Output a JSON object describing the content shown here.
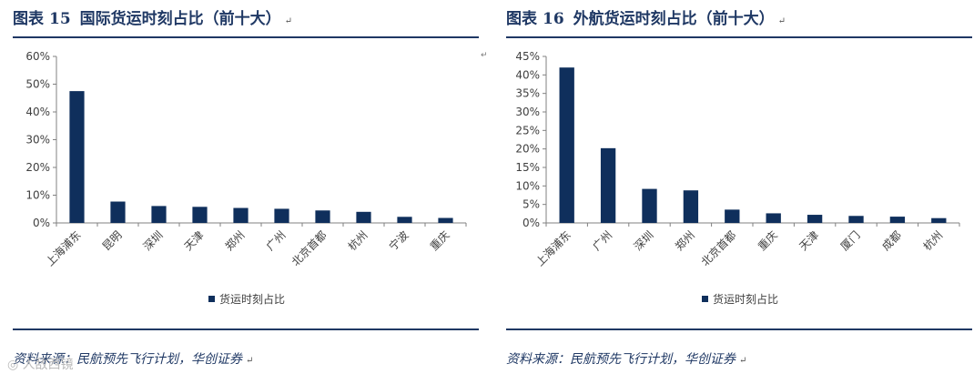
{
  "figures": [
    {
      "title_prefix": "图表",
      "number": "15",
      "title": "国际货运时刻占比（前十大）",
      "source": "资料来源：民航预先飞行计划，华创证券"
    },
    {
      "title_prefix": "图表",
      "number": "16",
      "title": "外航货运时刻占比（前十大）",
      "source": "资料来源：民航预先飞行计划，华创证券"
    }
  ],
  "paragraph_mark": "↵",
  "watermark": "人敌西镜",
  "colors": {
    "bar": "#0f2f5c",
    "axis": "#808080",
    "text": "#1f3864"
  },
  "chart_data": [
    {
      "type": "bar",
      "categories": [
        "上海浦东",
        "昆明",
        "深圳",
        "天津",
        "郑州",
        "广州",
        "北京首都",
        "杭州",
        "宁波",
        "重庆"
      ],
      "series": [
        {
          "name": "货运时刻占比",
          "values": [
            47.5,
            7.7,
            6.1,
            5.8,
            5.4,
            5.1,
            4.5,
            4.0,
            2.2,
            1.8
          ]
        }
      ],
      "ylim": [
        0,
        60
      ],
      "yticks": [
        0,
        10,
        20,
        30,
        40,
        50,
        60
      ],
      "ytick_labels": [
        "0%",
        "10%",
        "20%",
        "30%",
        "40%",
        "50%",
        "60%"
      ],
      "legend": "bottom",
      "grid": false
    },
    {
      "type": "bar",
      "categories": [
        "上海浦东",
        "广州",
        "深圳",
        "郑州",
        "北京首都",
        "重庆",
        "天津",
        "厦门",
        "成都",
        "杭州"
      ],
      "series": [
        {
          "name": "货运时刻占比",
          "values": [
            42.0,
            20.2,
            9.2,
            8.8,
            3.6,
            2.6,
            2.2,
            1.9,
            1.7,
            1.3
          ]
        }
      ],
      "ylim": [
        0,
        45
      ],
      "yticks": [
        0,
        5,
        10,
        15,
        20,
        25,
        30,
        35,
        40,
        45
      ],
      "ytick_labels": [
        "0%",
        "5%",
        "10%",
        "15%",
        "20%",
        "25%",
        "30%",
        "35%",
        "40%",
        "45%"
      ],
      "legend": "bottom",
      "grid": false
    }
  ]
}
